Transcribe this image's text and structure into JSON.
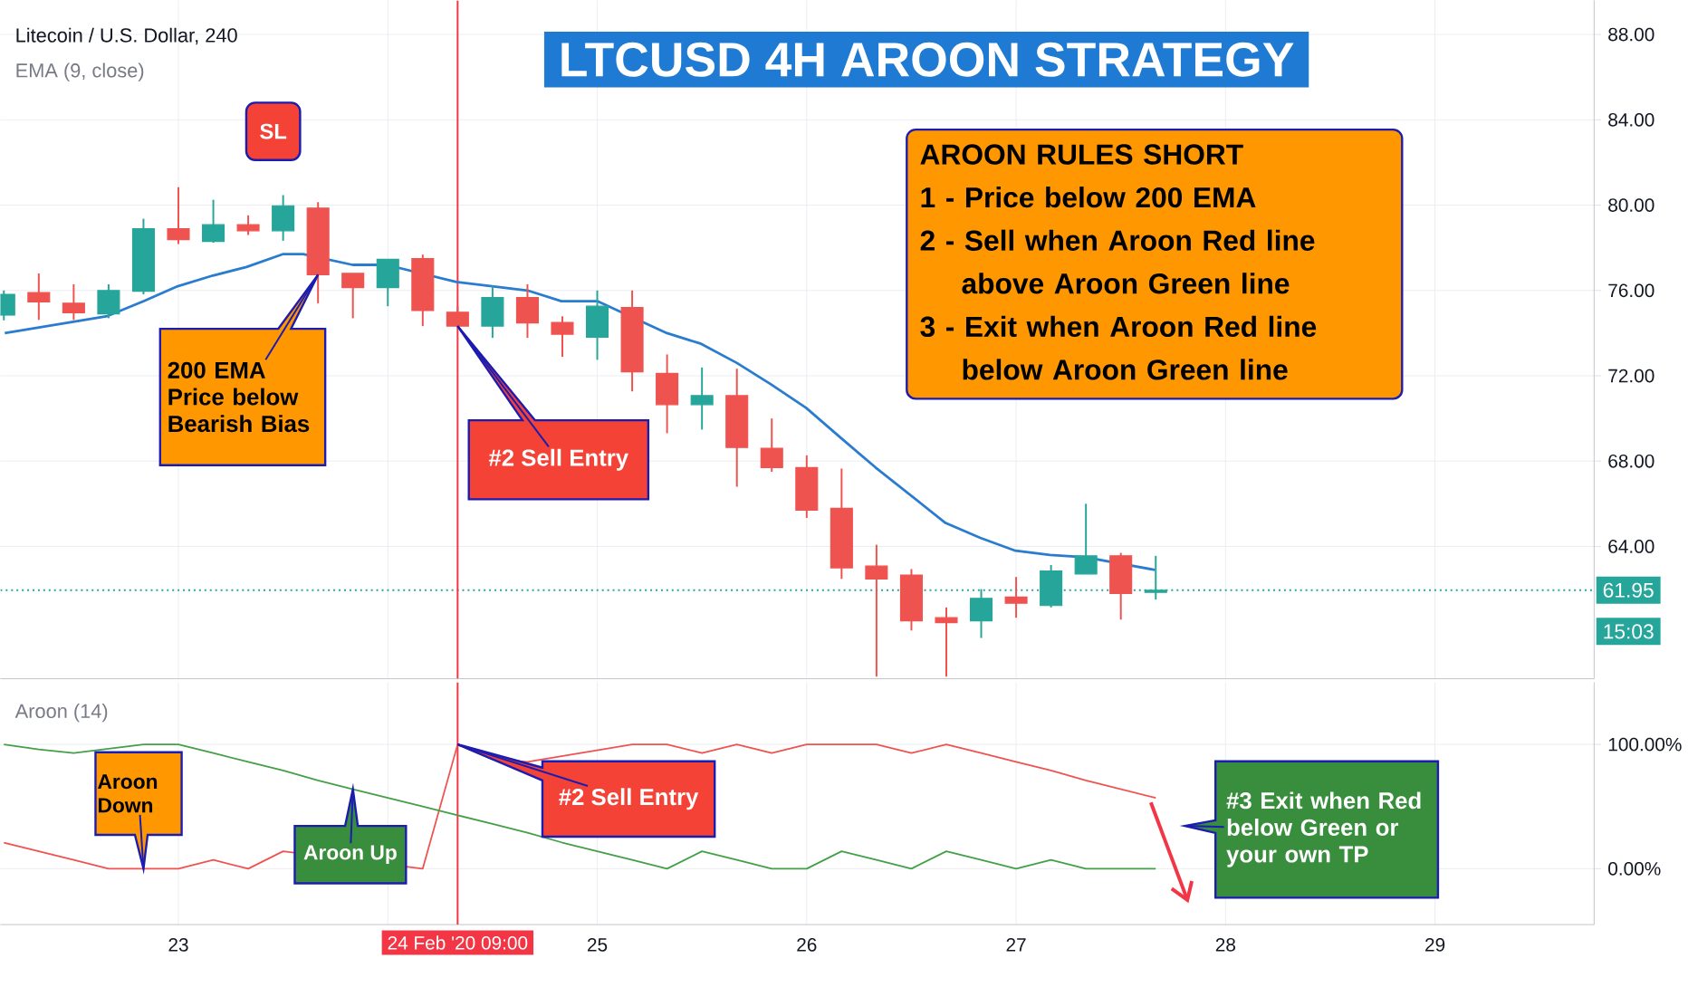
{
  "chart_data": [
    {
      "type": "candlestick",
      "title": "LTCUSD 4H AROON STRATEGY",
      "subtitle": "Litecoin / U.S. Dollar, 240",
      "x": [
        22.1667,
        22.3333,
        22.5,
        22.6667,
        22.8333,
        23,
        23.1667,
        23.3333,
        23.5,
        23.6667,
        23.8333,
        24,
        24.1667,
        24.3333,
        24.5,
        24.6667,
        24.8333,
        25,
        25.1667,
        25.3333,
        25.5,
        25.6667,
        25.8333,
        26,
        26.1667,
        26.3333,
        26.5,
        26.6667,
        26.8333,
        27,
        27.1667,
        27.3333,
        27.5,
        27.6667
      ],
      "ohlc": [
        [
          74.84,
          76.0,
          74.6,
          75.82
        ],
        [
          75.9,
          76.8,
          74.62,
          75.46
        ],
        [
          75.4,
          76.29,
          74.62,
          74.95
        ],
        [
          74.9,
          76.29,
          74.7,
          76.0
        ],
        [
          75.96,
          79.36,
          75.82,
          78.89
        ],
        [
          78.89,
          80.84,
          78.18,
          78.38
        ],
        [
          78.3,
          80.25,
          78.24,
          79.08
        ],
        [
          79.08,
          79.52,
          78.6,
          78.8
        ],
        [
          78.8,
          80.47,
          78.33,
          79.97
        ],
        [
          79.86,
          80.14,
          75.4,
          76.74
        ],
        [
          76.8,
          76.8,
          74.7,
          76.13
        ],
        [
          76.13,
          77.46,
          75.26,
          77.46
        ],
        [
          77.49,
          77.68,
          74.33,
          75.06
        ],
        [
          74.98,
          75.26,
          74.28,
          74.33
        ],
        [
          74.33,
          76.23,
          73.78,
          75.67
        ],
        [
          75.67,
          76.29,
          73.78,
          74.48
        ],
        [
          74.5,
          74.79,
          72.89,
          73.95
        ],
        [
          73.81,
          76.0,
          72.75,
          75.26
        ],
        [
          75.2,
          76.0,
          71.27,
          72.19
        ],
        [
          72.11,
          73.0,
          69.31,
          70.65
        ],
        [
          70.65,
          72.39,
          69.48,
          71.07
        ],
        [
          71.07,
          72.33,
          66.8,
          68.64
        ],
        [
          68.6,
          70.0,
          67.5,
          67.7
        ],
        [
          67.7,
          68.27,
          65.34,
          65.7
        ],
        [
          65.79,
          67.65,
          62.48,
          63.0
        ],
        [
          63.08,
          64.08,
          57.9,
          62.48
        ],
        [
          62.66,
          62.94,
          60.06,
          60.51
        ],
        [
          60.66,
          61.14,
          57.9,
          60.43
        ],
        [
          60.51,
          62.0,
          59.71,
          61.57
        ],
        [
          61.63,
          62.57,
          60.66,
          61.34
        ],
        [
          61.23,
          63.13,
          61.14,
          62.85
        ],
        [
          62.71,
          66.0,
          62.71,
          63.56
        ],
        [
          63.56,
          63.7,
          60.57,
          61.8
        ],
        [
          61.85,
          63.56,
          61.51,
          61.95
        ]
      ],
      "series": [
        {
          "type": "line",
          "color": "#2a7ccf",
          "x": [
            22.171,
            22.661,
            22.835,
            22.997,
            23.165,
            23.325,
            23.498,
            23.596,
            23.832,
            23.994,
            24.165,
            24.327,
            24.498,
            24.667,
            24.829,
            25.0,
            25.162,
            25.333,
            25.496,
            25.667,
            25.829,
            25.997,
            26.162,
            26.329,
            26.496,
            26.663,
            26.829,
            26.997,
            27.162,
            27.33,
            27.496,
            27.663
          ],
          "values": [
            74.0,
            74.8,
            75.5,
            76.2,
            76.7,
            77.1,
            77.7,
            77.7,
            77.2,
            77.2,
            null,
            76.4,
            76.2,
            76.0,
            75.5,
            75.5,
            null,
            74.0,
            73.5,
            72.6,
            71.6,
            70.5,
            69.1,
            67.7,
            66.4,
            65.1,
            64.4,
            63.8,
            63.6,
            63.5,
            null,
            62.9
          ]
        }
      ],
      "xlim": [
        22.15,
        29.76
      ],
      "ylim": [
        57.8,
        89.6
      ],
      "xticks": [
        23,
        24,
        25,
        26,
        27,
        28,
        29
      ],
      "yticks": [
        {
          "value": 64,
          "label": "64.00"
        },
        {
          "value": 68,
          "label": "68.00"
        },
        {
          "value": 72,
          "label": "72.00"
        },
        {
          "value": 76,
          "label": "76.00"
        },
        {
          "value": 80,
          "label": "80.00"
        },
        {
          "value": 84,
          "label": "84.00"
        },
        {
          "value": 88,
          "label": "88.00"
        }
      ],
      "tick_labels": "y",
      "grid": true,
      "ref_lines": [
        {
          "axis": "y",
          "value": 61.95,
          "label": "61.95",
          "color": "#26a69a",
          "line_style": "dotted"
        },
        {
          "axis": "x",
          "value": 24.3333,
          "color": "#f23645",
          "line_style": "solid"
        }
      ],
      "annotations": [
        "EMA (9, close)",
        "SL",
        {
          "text": "200 EMA Price below Bearish Bias",
          "x": 23.6667,
          "y": 76.74
        },
        {
          "text": "#2 Sell Entry",
          "x": 24.3333,
          "y": 74.33
        },
        "AROON RULES SHORT",
        "1 - Price below 200 EMA",
        "2 - Sell when Aroon Red line above Aroon Green line",
        "3 - Exit when Aroon Red line below Aroon Green line",
        "15:03"
      ]
    },
    {
      "type": "line",
      "title": "Aroon (14)",
      "x": [
        22.1667,
        22.3333,
        22.5,
        22.6667,
        22.8333,
        23,
        23.1667,
        23.3333,
        23.5,
        23.6667,
        23.8333,
        24,
        24.1667,
        24.3333,
        24.5,
        24.6667,
        24.8333,
        25,
        25.1667,
        25.3333,
        25.5,
        25.6667,
        25.8333,
        26,
        26.1667,
        26.3333,
        26.5,
        26.6667,
        26.8333,
        27,
        27.1667,
        27.3333,
        27.5,
        27.6667
      ],
      "series": [
        {
          "color": "#ef5350",
          "values": [
            21,
            14,
            7,
            0,
            0,
            0,
            7,
            0,
            14,
            null,
            null,
            null,
            0,
            100,
            88,
            86,
            null,
            null,
            100,
            100,
            93,
            100,
            93,
            100,
            100,
            100,
            93,
            100,
            93,
            86,
            79,
            71,
            64,
            57
          ]
        },
        {
          "color": "#43a047",
          "values": [
            100,
            96,
            93,
            null,
            100,
            100,
            93,
            86,
            79,
            71,
            64,
            57,
            50,
            43,
            36,
            29,
            21,
            14,
            7,
            0,
            14,
            7,
            0,
            0,
            14,
            7,
            0,
            14,
            7,
            0,
            7,
            0,
            0,
            0
          ]
        }
      ],
      "xlim": [
        22.15,
        29.76
      ],
      "ylim": [
        -45,
        150
      ],
      "xticks": [
        23,
        {
          "value": 24,
          "label": null
        },
        25,
        26,
        27,
        28,
        29
      ],
      "yticks": [
        {
          "value": 0,
          "label": "0.00%"
        },
        {
          "value": 100,
          "label": "100.00%"
        }
      ],
      "grid": true,
      "ref_lines": [
        {
          "axis": "x",
          "value": 24.3333,
          "label": "24 Feb '20  09:00",
          "color": "#f23645",
          "line_style": "solid"
        }
      ],
      "annotations": [
        {
          "text": "#2 Sell Entry",
          "x": 24.3333,
          "y": 100
        },
        "#3 Exit when Red below Green or your own TP",
        {
          "text": "Aroon Down",
          "x": 22.8333,
          "y": 0
        },
        {
          "text": "Aroon Up",
          "x": 23.8333,
          "y": 64
        }
      ]
    }
  ]
}
